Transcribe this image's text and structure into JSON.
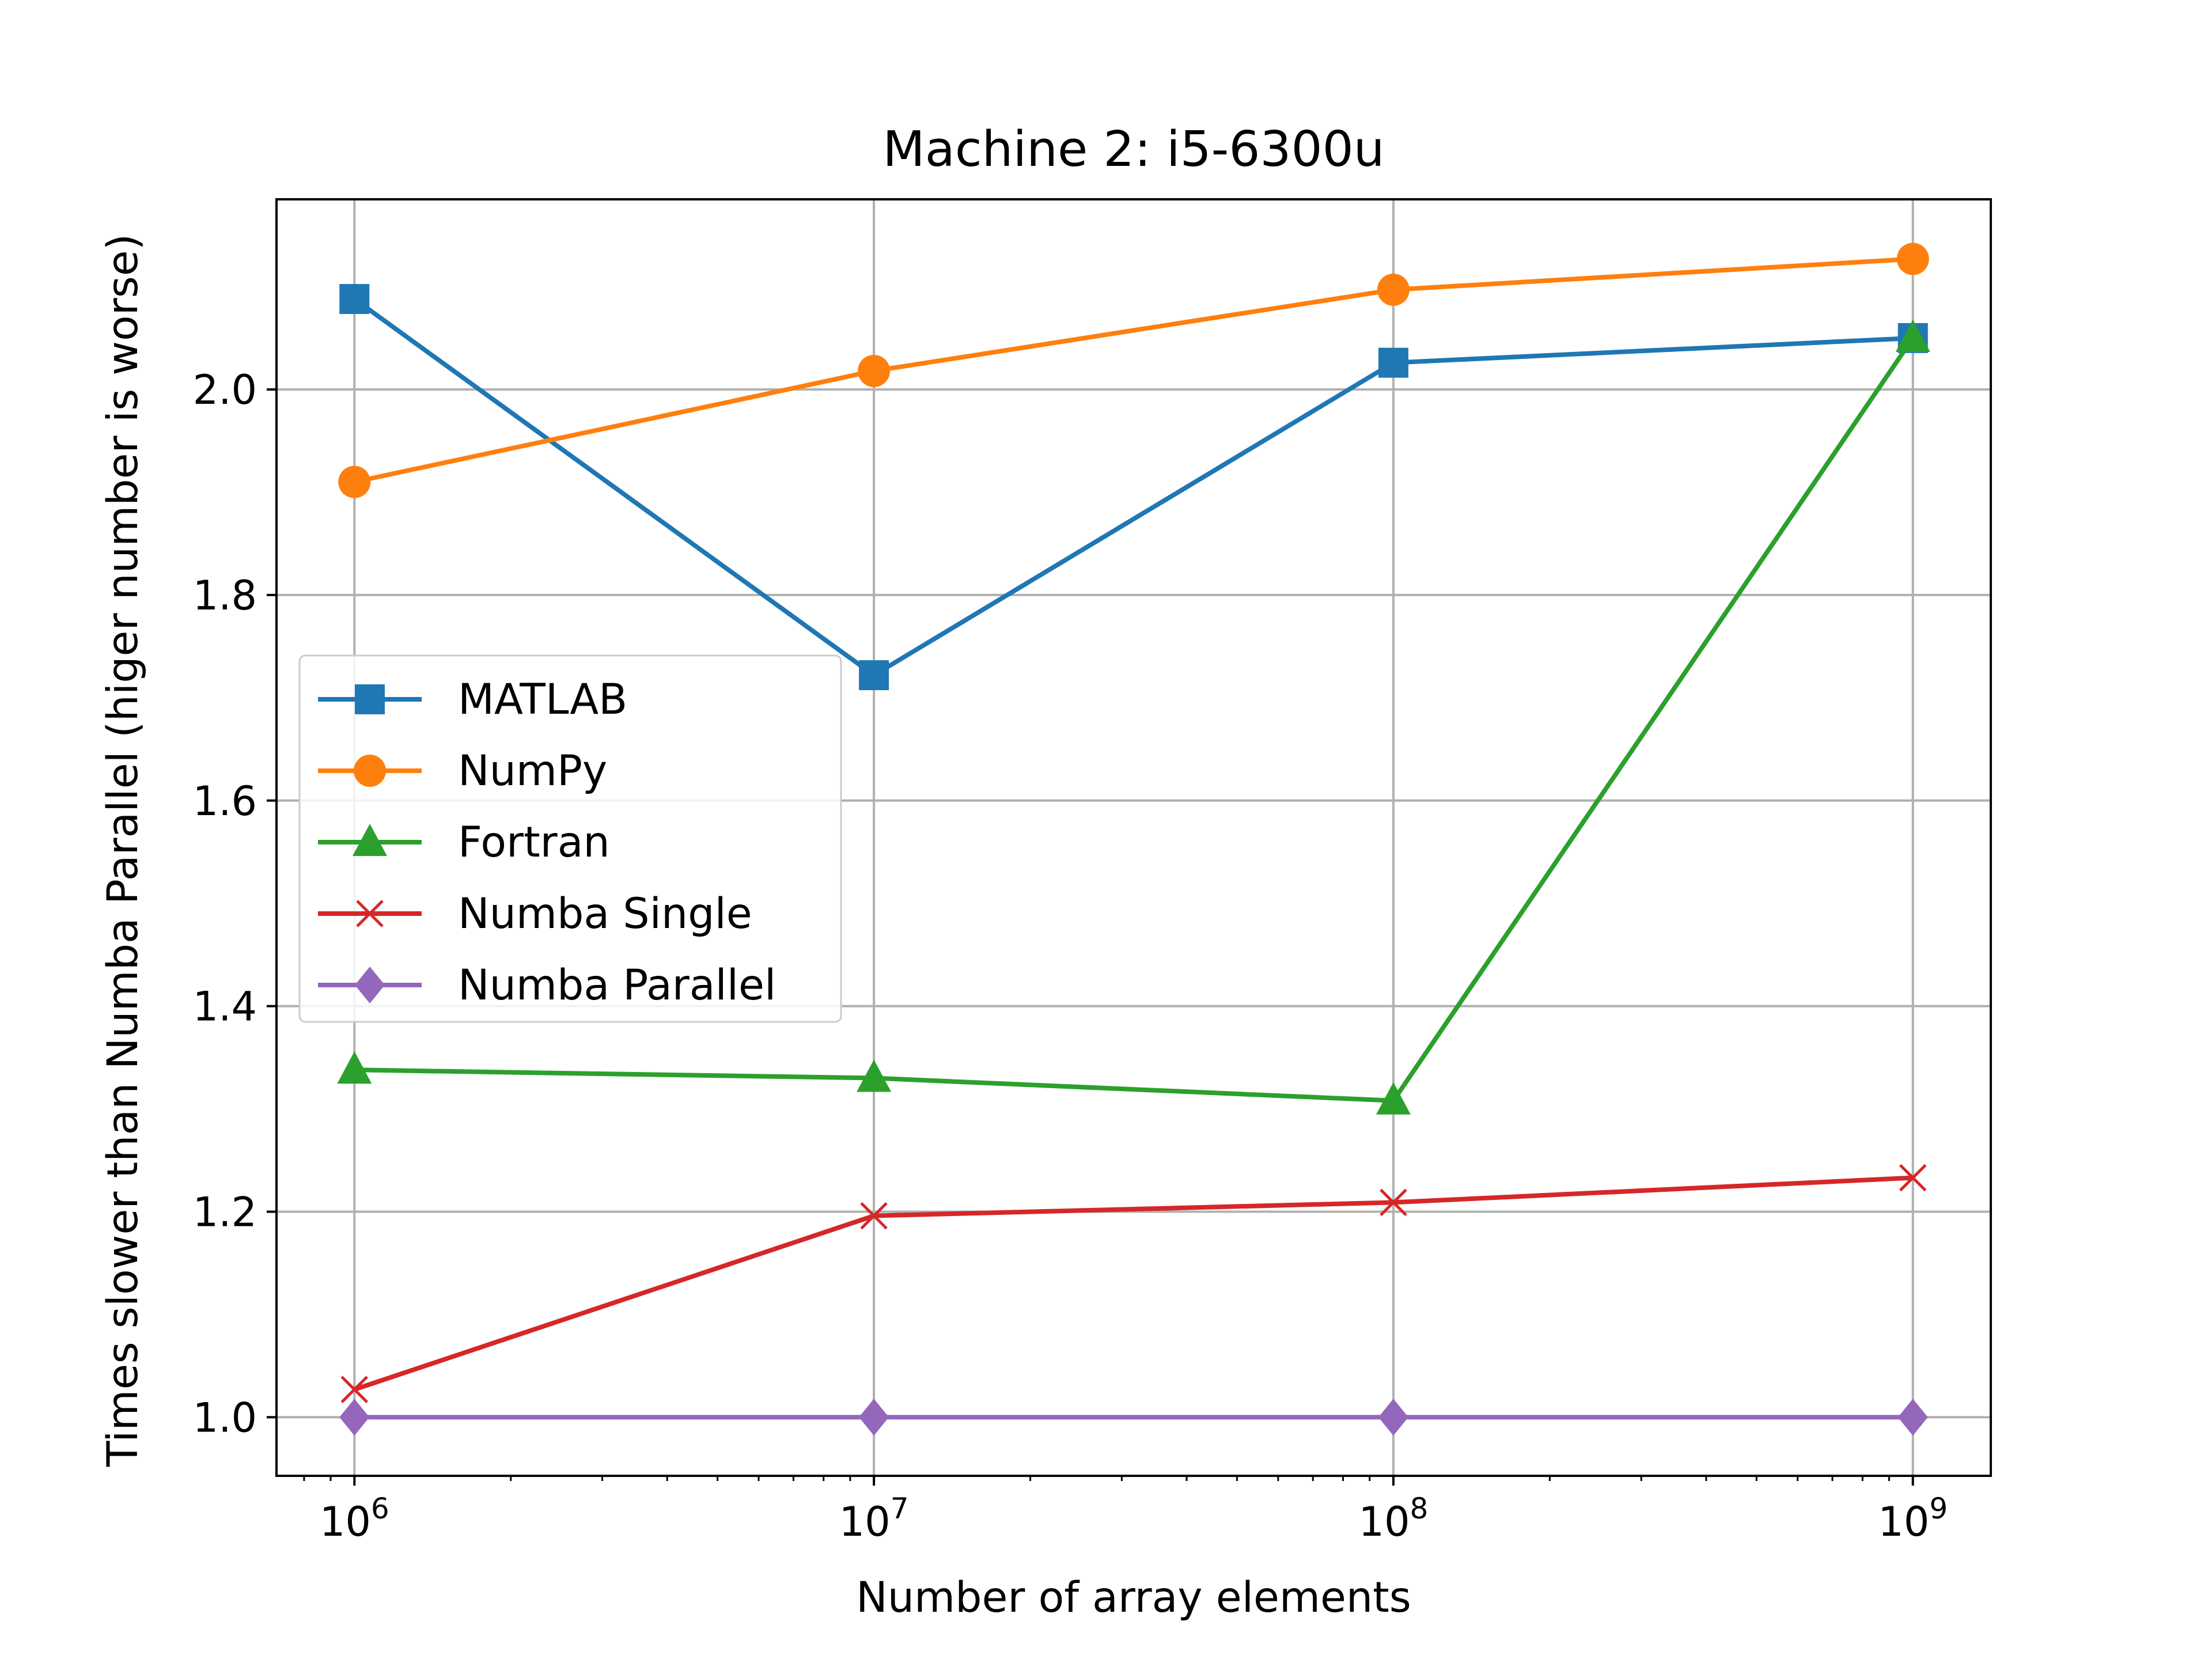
{
  "chart_data": {
    "type": "line",
    "title": "Machine 2: i5-6300u",
    "xlabel": "Number of array elements",
    "ylabel": "Times slower than Numba Parallel (higer number is worse)",
    "x_scale": "log",
    "x": [
      1000000,
      10000000,
      100000000,
      1000000000
    ],
    "x_tick_labels": [
      {
        "base": "10",
        "exp": "6"
      },
      {
        "base": "10",
        "exp": "7"
      },
      {
        "base": "10",
        "exp": "8"
      },
      {
        "base": "10",
        "exp": "9"
      }
    ],
    "y_ticks": [
      1.0,
      1.2,
      1.4,
      1.6,
      1.8,
      2.0
    ],
    "y_tick_labels": [
      "1.0",
      "1.2",
      "1.4",
      "1.6",
      "1.8",
      "2.0"
    ],
    "ylim": [
      0.943,
      2.185
    ],
    "xlim_log10": [
      5.85,
      9.15
    ],
    "grid": true,
    "legend_position": "center-left",
    "series": [
      {
        "name": "MATLAB",
        "values": [
          2.088,
          1.722,
          2.026,
          2.05
        ],
        "color": "#1f77b4",
        "marker": "square"
      },
      {
        "name": "NumPy",
        "values": [
          1.91,
          2.018,
          2.097,
          2.127
        ],
        "color": "#ff7f0e",
        "marker": "circle"
      },
      {
        "name": "Fortran",
        "values": [
          1.338,
          1.33,
          1.308,
          2.05
        ],
        "color": "#2ca02c",
        "marker": "triangle"
      },
      {
        "name": "Numba Single",
        "values": [
          1.027,
          1.196,
          1.209,
          1.233
        ],
        "color": "#d62728",
        "marker": "x"
      },
      {
        "name": "Numba Parallel",
        "values": [
          1.0,
          1.0,
          1.0,
          1.0
        ],
        "color": "#9467bd",
        "marker": "diamond"
      }
    ]
  }
}
